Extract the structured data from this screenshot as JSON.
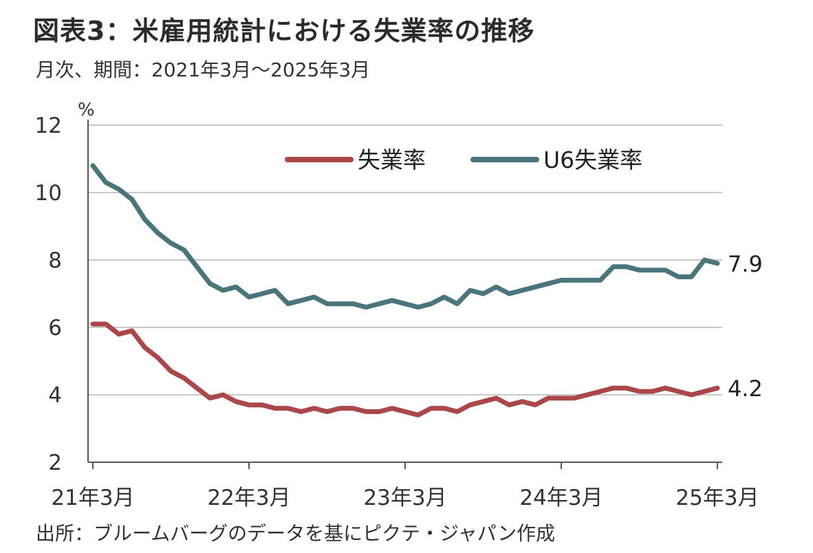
{
  "title": "図表3：米雇用統計における失業率の推移",
  "subtitle": "月次、期間：2021年3月～2025年3月",
  "source": "出所：ブルームバーグのデータを基にピクテ・ジャパン作成",
  "colors": {
    "unemployment": "#a9474b",
    "u6": "#4a767b",
    "grid": "#c8c8c8",
    "axis": "#555555"
  },
  "chart_data": {
    "type": "line",
    "ylabel": "%",
    "ylim": [
      2,
      12
    ],
    "yticks": [
      "2",
      "4",
      "6",
      "8",
      "10",
      "12"
    ],
    "xtick_labels": [
      "21年3月",
      "22年3月",
      "23年3月",
      "24年3月",
      "25年3月"
    ],
    "legend": {
      "position": "top-right",
      "entries": [
        "失業率",
        "U6失業率"
      ]
    },
    "grid": "horizontal",
    "x": [
      "2021-03",
      "2021-04",
      "2021-05",
      "2021-06",
      "2021-07",
      "2021-08",
      "2021-09",
      "2021-10",
      "2021-11",
      "2021-12",
      "2022-01",
      "2022-02",
      "2022-03",
      "2022-04",
      "2022-05",
      "2022-06",
      "2022-07",
      "2022-08",
      "2022-09",
      "2022-10",
      "2022-11",
      "2022-12",
      "2023-01",
      "2023-02",
      "2023-03",
      "2023-04",
      "2023-05",
      "2023-06",
      "2023-07",
      "2023-08",
      "2023-09",
      "2023-10",
      "2023-11",
      "2023-12",
      "2024-01",
      "2024-02",
      "2024-03",
      "2024-04",
      "2024-05",
      "2024-06",
      "2024-07",
      "2024-08",
      "2024-09",
      "2024-10",
      "2024-11",
      "2024-12",
      "2025-01",
      "2025-02",
      "2025-03"
    ],
    "series": [
      {
        "name": "失業率",
        "values": [
          6.1,
          6.1,
          5.8,
          5.9,
          5.4,
          5.1,
          4.7,
          4.5,
          4.2,
          3.9,
          4.0,
          3.8,
          3.7,
          3.7,
          3.6,
          3.6,
          3.5,
          3.6,
          3.5,
          3.6,
          3.6,
          3.5,
          3.5,
          3.6,
          3.5,
          3.4,
          3.6,
          3.6,
          3.5,
          3.7,
          3.8,
          3.9,
          3.7,
          3.8,
          3.7,
          3.9,
          3.9,
          3.9,
          4.0,
          4.1,
          4.2,
          4.2,
          4.1,
          4.1,
          4.2,
          4.1,
          4.0,
          4.1,
          4.2
        ],
        "end_label": "4.2"
      },
      {
        "name": "U6失業率",
        "values": [
          10.8,
          10.3,
          10.1,
          9.8,
          9.2,
          8.8,
          8.5,
          8.3,
          7.8,
          7.3,
          7.1,
          7.2,
          6.9,
          7.0,
          7.1,
          6.7,
          6.8,
          6.9,
          6.7,
          6.7,
          6.7,
          6.6,
          6.7,
          6.8,
          6.7,
          6.6,
          6.7,
          6.9,
          6.7,
          7.1,
          7.0,
          7.2,
          7.0,
          7.1,
          7.2,
          7.3,
          7.4,
          7.4,
          7.4,
          7.4,
          7.8,
          7.8,
          7.7,
          7.7,
          7.7,
          7.5,
          7.5,
          8.0,
          7.9
        ],
        "end_label": "7.9"
      }
    ]
  }
}
